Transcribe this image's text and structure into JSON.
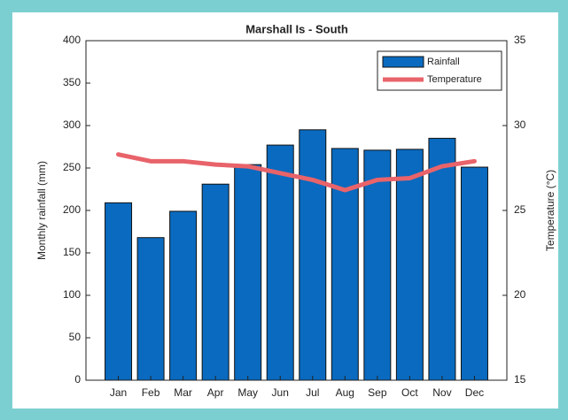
{
  "chart_data": {
    "type": "bar",
    "title": "Marshall Is - South",
    "ylabel": "Monthly rainfall (mm)",
    "y2label": "Temperature (°C)",
    "categories": [
      "Jan",
      "Feb",
      "Mar",
      "Apr",
      "May",
      "Jun",
      "Jul",
      "Aug",
      "Sep",
      "Oct",
      "Nov",
      "Dec"
    ],
    "series": [
      {
        "name": "Rainfall",
        "type": "bar",
        "color": "#0a6abf",
        "values": [
          209,
          168,
          199,
          231,
          254,
          277,
          295,
          273,
          271,
          272,
          285,
          251
        ]
      },
      {
        "name": "Temperature",
        "type": "line",
        "axis": "y2",
        "color": "#e8636a",
        "values": [
          28.3,
          27.9,
          27.9,
          27.7,
          27.6,
          27.2,
          26.8,
          26.2,
          26.8,
          26.9,
          27.6,
          27.9
        ]
      }
    ],
    "ylim": [
      0,
      400
    ],
    "yticks": [
      0,
      50,
      100,
      150,
      200,
      250,
      300,
      350,
      400
    ],
    "y2lim": [
      15,
      35
    ],
    "y2ticks": [
      15,
      20,
      25,
      30,
      35
    ],
    "legend": "upper right"
  }
}
